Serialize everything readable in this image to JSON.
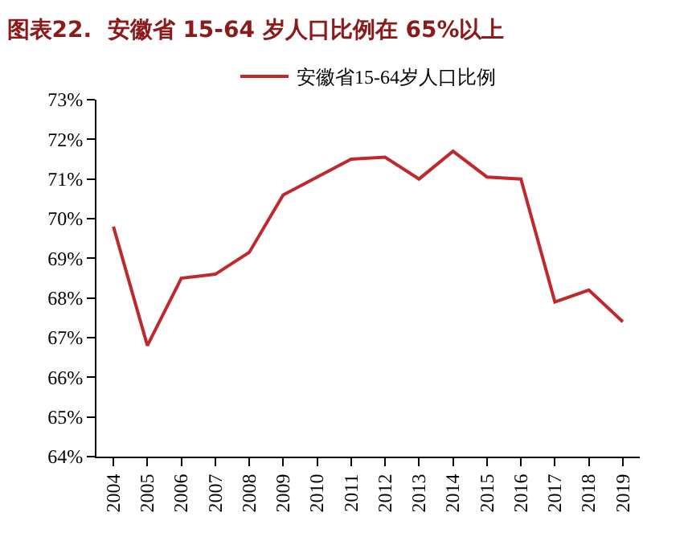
{
  "chart_data": {
    "type": "line",
    "title": "图表22.  安徽省 15-64 岁人口比例在 65%以上",
    "categories": [
      "2004",
      "2005",
      "2006",
      "2007",
      "2008",
      "2009",
      "2010",
      "2011",
      "2012",
      "2013",
      "2014",
      "2015",
      "2016",
      "2017",
      "2018",
      "2019"
    ],
    "series": [
      {
        "name": "安徽省15-64岁人口比例",
        "color": "#c0282d",
        "values": [
          69.8,
          66.8,
          68.5,
          68.6,
          69.15,
          70.6,
          71.05,
          71.5,
          71.55,
          71.0,
          71.7,
          71.05,
          71.0,
          67.9,
          68.2,
          67.4
        ]
      }
    ],
    "ylim": [
      64,
      73
    ],
    "yticks": [
      {
        "value": 64,
        "label": "64%"
      },
      {
        "value": 65,
        "label": "65%"
      },
      {
        "value": 66,
        "label": "66%"
      },
      {
        "value": 67,
        "label": "67%"
      },
      {
        "value": 68,
        "label": "68%"
      },
      {
        "value": 69,
        "label": "69%"
      },
      {
        "value": 70,
        "label": "70%"
      },
      {
        "value": 71,
        "label": "71%"
      },
      {
        "value": 72,
        "label": "72%"
      },
      {
        "value": 73,
        "label": "73%"
      }
    ],
    "legend": "top",
    "marker": "none",
    "line_style": "solid"
  }
}
